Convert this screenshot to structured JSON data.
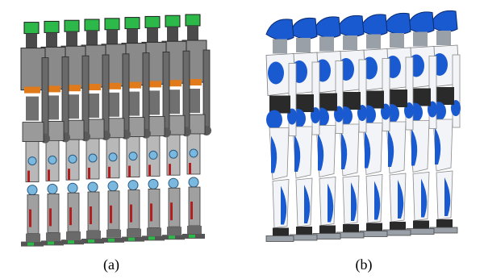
{
  "figure": {
    "panels": [
      {
        "label": "(a)",
        "robot_count": 9,
        "palette": {
          "metal": "#8a8a8a",
          "dark": "#4a4a4a",
          "accent": "#e07a1a",
          "green": "#2db84a",
          "blue": "#7ab8e0",
          "red": "#b02020"
        }
      },
      {
        "label": "(b)",
        "robot_count": 8,
        "palette": {
          "shell": "#1a5ad0",
          "white": "#f2f4f8",
          "gray": "#9aa0a8",
          "dark": "#2a2a2a"
        }
      }
    ]
  }
}
